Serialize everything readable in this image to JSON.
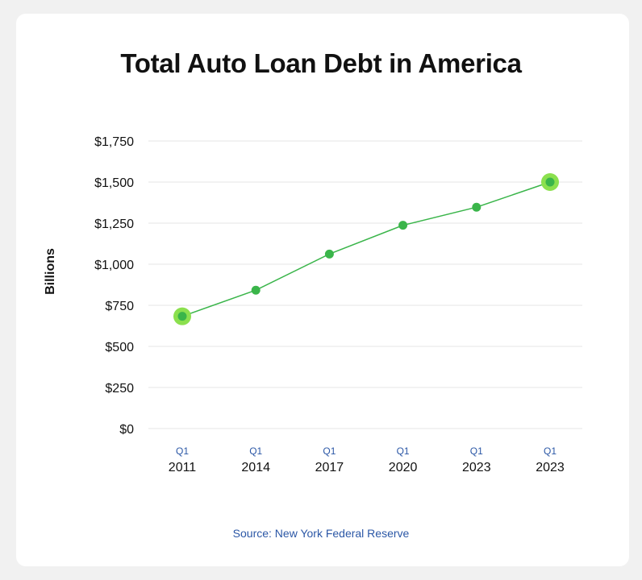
{
  "chart_data": {
    "type": "line",
    "title": "Total Auto Loan Debt in America",
    "ylabel": "Billions",
    "xlabel": "",
    "ylim": [
      0,
      1750
    ],
    "yticks": [
      0,
      250,
      500,
      750,
      1000,
      1250,
      1500,
      1750
    ],
    "ytick_labels": [
      "$0",
      "$250",
      "$500",
      "$750",
      "$1,000",
      "$1,250",
      "$1,500",
      "$1,750"
    ],
    "categories": [
      {
        "quarter": "Q1",
        "year": "2011"
      },
      {
        "quarter": "Q1",
        "year": "2014"
      },
      {
        "quarter": "Q1",
        "year": "2017"
      },
      {
        "quarter": "Q1",
        "year": "2020"
      },
      {
        "quarter": "Q1",
        "year": "2023"
      },
      {
        "quarter": "Q1",
        "year": "2023"
      }
    ],
    "series": [
      {
        "values": [
          683,
          842,
          1062,
          1237,
          1347,
          1500
        ],
        "color": "#3ab54a"
      }
    ],
    "highlighted_points": [
      0,
      5
    ],
    "highlight_color": "#8be04e",
    "grid": true,
    "source": "Source: New York Federal Reserve"
  }
}
